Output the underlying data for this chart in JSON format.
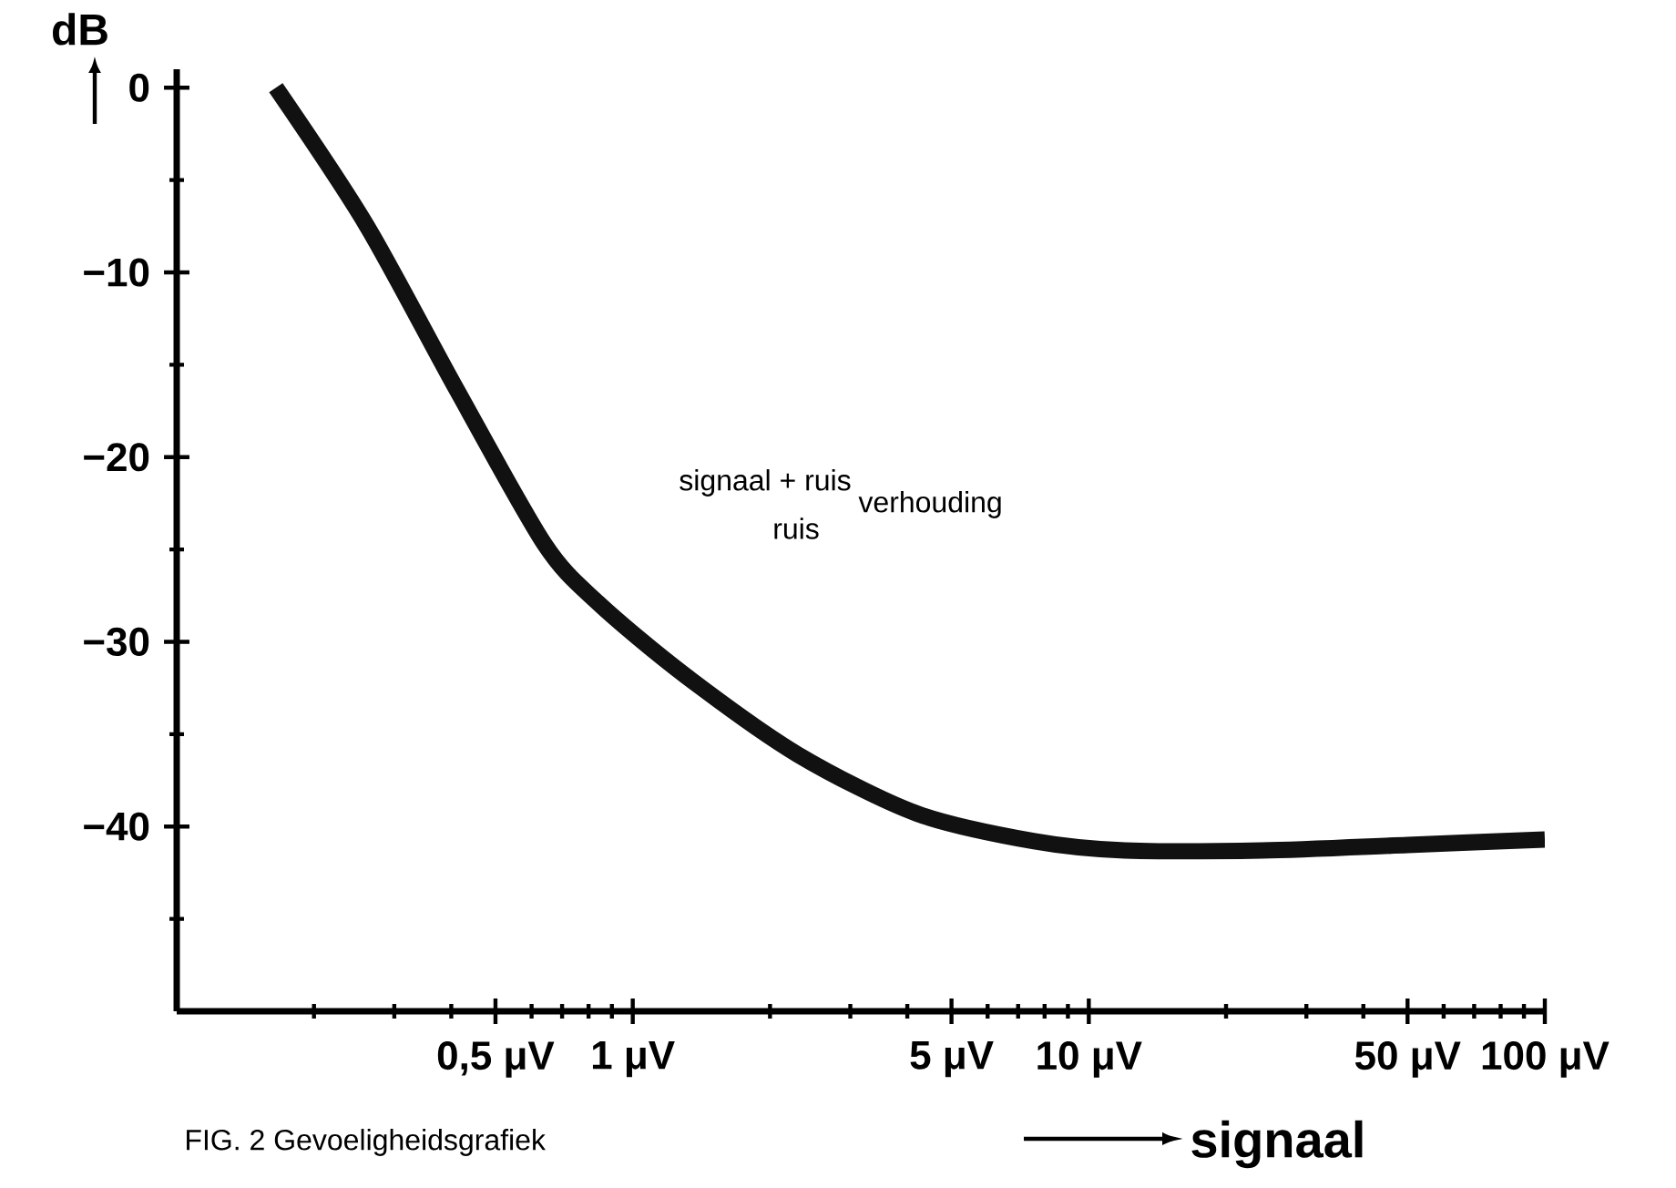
{
  "chart_data": {
    "type": "line",
    "xlabel": "signaal",
    "ylabel": "dB",
    "log": "x",
    "color": "#111111",
    "x": [
      0.165,
      0.26,
      0.41,
      0.64,
      0.84,
      1.3,
      2.3,
      4.2,
      7.6,
      12,
      24,
      50,
      100
    ],
    "values": [
      0,
      -7.4,
      -16.3,
      -24.7,
      -27.9,
      -31.8,
      -36.1,
      -39.3,
      -40.8,
      -41.3,
      -41.3,
      -41.0,
      -40.7
    ],
    "xlim": [
      0.1,
      100
    ],
    "ylim": [
      -50,
      1
    ],
    "xticks": [
      {
        "value": 0.2,
        "label": null
      },
      {
        "value": 0.3,
        "label": null
      },
      {
        "value": 0.4,
        "label": null
      },
      {
        "value": 0.5,
        "label": "0,5 μV"
      },
      {
        "value": 0.6,
        "label": null
      },
      {
        "value": 0.7,
        "label": null
      },
      {
        "value": 0.8,
        "label": null
      },
      {
        "value": 0.9,
        "label": null
      },
      {
        "value": 1,
        "label": "1 μV"
      },
      {
        "value": 2,
        "label": null
      },
      {
        "value": 3,
        "label": null
      },
      {
        "value": 4,
        "label": null
      },
      {
        "value": 5,
        "label": "5 μV"
      },
      {
        "value": 6,
        "label": null
      },
      {
        "value": 7,
        "label": null
      },
      {
        "value": 8,
        "label": null
      },
      {
        "value": 9,
        "label": null
      },
      {
        "value": 10,
        "label": "10 μV"
      },
      {
        "value": 20,
        "label": null
      },
      {
        "value": 30,
        "label": null
      },
      {
        "value": 40,
        "label": null
      },
      {
        "value": 50,
        "label": "50 μV"
      },
      {
        "value": 60,
        "label": null
      },
      {
        "value": 70,
        "label": null
      },
      {
        "value": 80,
        "label": null
      },
      {
        "value": 90,
        "label": null
      },
      {
        "value": 100,
        "label": "100 μV"
      }
    ],
    "yticks": [
      {
        "value": -45,
        "label": null
      },
      {
        "value": -40,
        "label": "−40"
      },
      {
        "value": -35,
        "label": null
      },
      {
        "value": -30,
        "label": "−30"
      },
      {
        "value": -25,
        "label": null
      },
      {
        "value": -20,
        "label": "−20"
      },
      {
        "value": -15,
        "label": null
      },
      {
        "value": -10,
        "label": "−10"
      },
      {
        "value": -5,
        "label": null
      },
      0
    ],
    "annotations": [
      "signaal + ruis",
      "ruis",
      "verhouding",
      "FIG. 2 Gevoeligheidsgrafiek"
    ]
  }
}
